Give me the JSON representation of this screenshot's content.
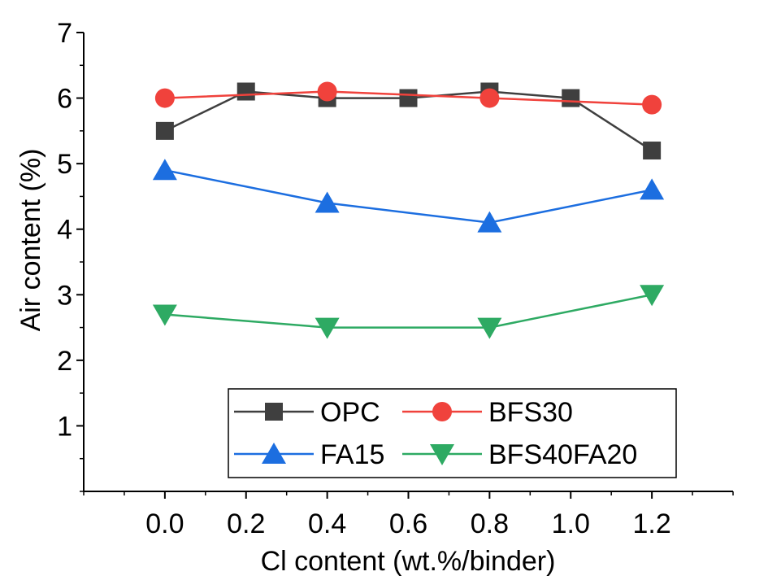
{
  "chart_data": {
    "type": "line",
    "xlabel": "Cl content (wt.%/binder)",
    "ylabel": "Air content (%)",
    "xlim": [
      -0.2,
      1.4
    ],
    "ylim": [
      0,
      7
    ],
    "x_ticks": [
      "0.0",
      "0.2",
      "0.4",
      "0.6",
      "0.8",
      "1.0",
      "1.2"
    ],
    "y_ticks": [
      "1",
      "2",
      "3",
      "4",
      "5",
      "6",
      "7"
    ],
    "legend_position": "bottom-center",
    "series": [
      {
        "name": "OPC",
        "marker": "square",
        "color": "#3f3f3f",
        "x": [
          0.0,
          0.2,
          0.4,
          0.6,
          0.8,
          1.0,
          1.2
        ],
        "y": [
          5.5,
          6.1,
          6.0,
          6.0,
          6.1,
          6.0,
          5.2
        ]
      },
      {
        "name": "BFS30",
        "marker": "circle",
        "color": "#f0423c",
        "x": [
          0.0,
          0.4,
          0.8,
          1.2
        ],
        "y": [
          6.0,
          6.1,
          6.0,
          5.9
        ]
      },
      {
        "name": "FA15",
        "marker": "triangle-up",
        "color": "#1c6ee0",
        "x": [
          0.0,
          0.4,
          0.8,
          1.2
        ],
        "y": [
          4.9,
          4.4,
          4.1,
          4.6
        ]
      },
      {
        "name": "BFS40FA20",
        "marker": "triangle-down",
        "color": "#2eaa63",
        "x": [
          0.0,
          0.4,
          0.8,
          1.2
        ],
        "y": [
          2.7,
          2.5,
          2.5,
          3.0
        ]
      }
    ]
  }
}
